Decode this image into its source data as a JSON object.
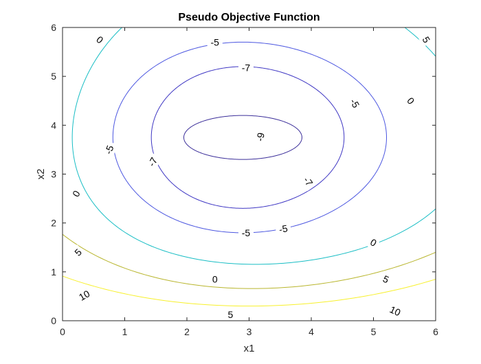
{
  "chart_data": {
    "type": "contour",
    "title": "Pseudo Objective Function",
    "xlabel": "x1",
    "ylabel": "x2",
    "xlim": [
      0,
      6
    ],
    "ylim": [
      0,
      6
    ],
    "xticks": [
      "0",
      "1",
      "2",
      "3",
      "4",
      "5",
      "6"
    ],
    "yticks": [
      "0",
      "1",
      "2",
      "3",
      "4",
      "5",
      "6"
    ],
    "grid": false,
    "box": true,
    "colormap": "parula",
    "center": [
      2.9,
      3.75
    ],
    "levels": [
      {
        "value": -9,
        "label": "-9",
        "color": "#3a2d99",
        "curve": {
          "cx": 2.9,
          "cy": 3.75,
          "rx": 0.95,
          "ry": 0.45,
          "ax": 0.0,
          "ay": 0.0
        },
        "labels": [
          {
            "x": 3.18,
            "y": 3.76,
            "text": "-9",
            "angle": 80
          }
        ]
      },
      {
        "value": -7,
        "label": "-7",
        "color": "#3d35c3",
        "curve": {
          "cx": 2.9,
          "cy": 3.75,
          "rx": 1.55,
          "ry": 1.45,
          "ax": 0.05,
          "ay": 0.0
        },
        "labels": [
          {
            "x": 2.95,
            "y": 5.18,
            "text": "-7",
            "angle": 0
          },
          {
            "x": 1.45,
            "y": 3.25,
            "text": "-7",
            "angle": 60
          },
          {
            "x": 3.95,
            "y": 2.85,
            "text": "-7",
            "angle": -55
          }
        ]
      },
      {
        "value": -5,
        "label": "-5",
        "color": "#4a55e0",
        "curve": {
          "cx": 2.9,
          "cy": 3.75,
          "rx": 2.2,
          "ry": 1.95,
          "ax": 0.05,
          "ay": 0.0
        },
        "labels": [
          {
            "x": 2.45,
            "y": 5.7,
            "text": "-5",
            "angle": 0
          },
          {
            "x": 4.7,
            "y": 4.45,
            "text": "-5",
            "angle": -60
          },
          {
            "x": 0.75,
            "y": 3.5,
            "text": "-5",
            "angle": 70
          },
          {
            "x": 2.95,
            "y": 1.8,
            "text": "-5",
            "angle": 0
          },
          {
            "x": 3.55,
            "y": 1.88,
            "text": "-5",
            "angle": 10
          }
        ]
      },
      {
        "value": 0,
        "label": "0",
        "color": "#17bdc4",
        "curve": {
          "cx": 3.1,
          "cy": 3.75,
          "rx": 3.2,
          "ry": 2.95,
          "ax": 0.08,
          "ay": 0.12
        },
        "labels": [
          {
            "x": 0.6,
            "y": 5.75,
            "text": "0",
            "angle": -40
          },
          {
            "x": 5.6,
            "y": 4.5,
            "text": "0",
            "angle": -50
          },
          {
            "x": 0.22,
            "y": 2.6,
            "text": "0",
            "angle": 60
          },
          {
            "x": 5.0,
            "y": 1.6,
            "text": "0",
            "angle": -30
          },
          {
            "x": 2.45,
            "y": 0.85,
            "text": "0",
            "angle": 0
          }
        ]
      },
      {
        "value": 5,
        "label": "5",
        "color": "#b8b52c",
        "curve": {
          "cx": 3.05,
          "cy": 4.75,
          "rx": 4.6,
          "ry": 4.65,
          "ax": 0.1,
          "ay": 0.12
        },
        "labels": [
          {
            "x": 5.85,
            "y": 5.75,
            "text": "5",
            "angle": -60
          },
          {
            "x": 0.25,
            "y": 1.4,
            "text": "5",
            "angle": 45
          },
          {
            "x": 2.7,
            "y": 0.13,
            "text": "5",
            "angle": 0
          },
          {
            "x": 5.2,
            "y": 0.85,
            "text": "5",
            "angle": -25
          }
        ]
      },
      {
        "value": 10,
        "label": "10",
        "color": "#f7f02a",
        "curve": {
          "cx": 3.0,
          "cy": 5.4,
          "rx": 6.0,
          "ry": 6.0,
          "ax": 0.05,
          "ay": 0.15
        },
        "labels": [
          {
            "x": 0.35,
            "y": 0.52,
            "text": "10",
            "angle": 30
          },
          {
            "x": 5.35,
            "y": 0.2,
            "text": "10",
            "angle": -25
          }
        ]
      }
    ]
  }
}
